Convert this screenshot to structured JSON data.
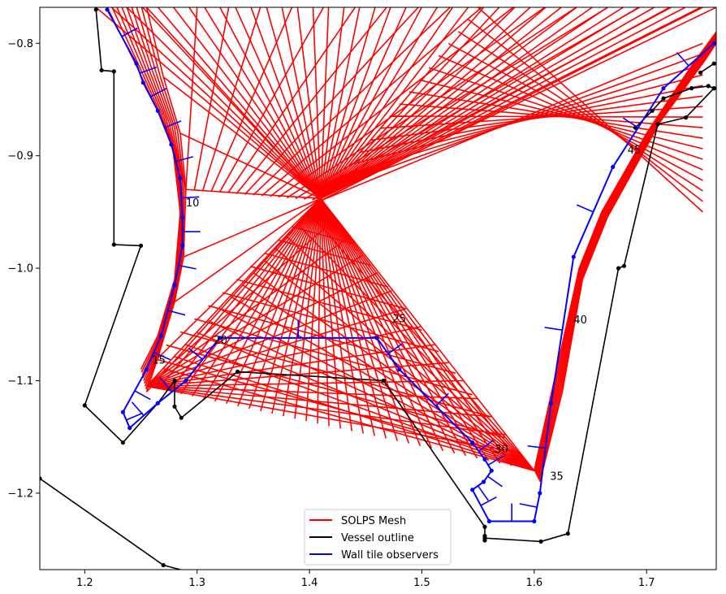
{
  "chart_data": {
    "type": "line",
    "title": "",
    "xlabel": "",
    "ylabel": "",
    "xlim": [
      1.16,
      1.762
    ],
    "ylim": [
      -1.268,
      -0.768
    ],
    "x_ticks": [
      1.2,
      1.3,
      1.4,
      1.5,
      1.6,
      1.7
    ],
    "x_tick_labels": [
      "1.2",
      "1.3",
      "1.4",
      "1.5",
      "1.6",
      "1.7"
    ],
    "y_ticks": [
      -0.8,
      -0.9,
      -1.0,
      -1.1,
      -1.2
    ],
    "y_tick_labels": [
      "−0.8",
      "−0.9",
      "−1.0",
      "−1.1",
      "−1.2"
    ],
    "grid": false,
    "legend_position": "lower-center",
    "colors": {
      "mesh": "#ff0000",
      "vessel": "#000000",
      "wall": "#0000ff"
    },
    "series": [
      {
        "name": "SOLPS Mesh",
        "color": "#ff0000",
        "x": [
          1.265,
          1.29,
          1.29,
          1.49,
          1.6,
          1.67,
          1.75,
          1.76
        ],
        "y": [
          -0.77,
          -0.92,
          -1.0,
          -1.03,
          -1.18,
          -0.95,
          -0.8,
          -0.77
        ]
      },
      {
        "name": "Vessel outline",
        "color": "#000000",
        "segments": [
          {
            "x": [
              1.21,
              1.215,
              1.226,
              1.226,
              1.25,
              1.2,
              1.234,
              1.265,
              1.28,
              1.28,
              1.286,
              1.336,
              1.466,
              1.556,
              1.556,
              1.556,
              1.556,
              1.606,
              1.63,
              1.675,
              1.68,
              1.71,
              1.735,
              1.76
            ],
            "y": [
              -0.77,
              -0.824,
              -0.825,
              -0.979,
              -0.98,
              -1.122,
              -1.155,
              -1.12,
              -1.1,
              -1.123,
              -1.133,
              -1.092,
              -1.1,
              -1.23,
              -1.238,
              -1.242,
              -1.24,
              -1.243,
              -1.236,
              -1.0,
              -0.998,
              -0.872,
              -0.866,
              -0.84
            ]
          },
          {
            "x": [
              1.16,
              1.27,
              1.3
            ],
            "y": [
              -1.187,
              -1.264,
              -1.272
            ]
          },
          {
            "x": [
              1.76,
              1.755,
              1.74,
              1.715,
              1.705,
              1.69
            ],
            "y": [
              -0.84,
              -0.838,
              -0.84,
              -0.849,
              -0.86,
              -0.875
            ]
          },
          {
            "x": [
              1.748,
              1.76
            ],
            "y": [
              -0.826,
              -0.818
            ]
          }
        ]
      },
      {
        "name": "Wall tile observers",
        "color": "#0000ff",
        "x": [
          1.22,
          1.246,
          1.252,
          1.265,
          1.277,
          1.285,
          1.287,
          1.287,
          1.28,
          1.268,
          1.255,
          1.234,
          1.24,
          1.265,
          1.29,
          1.32,
          1.46,
          1.48,
          1.545,
          1.556,
          1.562,
          1.555,
          1.545,
          1.56,
          1.6,
          1.605,
          1.615,
          1.635,
          1.67,
          1.715,
          1.76
        ],
        "y": [
          -0.77,
          -0.818,
          -0.835,
          -0.86,
          -0.89,
          -0.92,
          -0.955,
          -0.98,
          -1.015,
          -1.06,
          -1.09,
          -1.128,
          -1.142,
          -1.12,
          -1.1,
          -1.062,
          -1.062,
          -1.09,
          -1.155,
          -1.17,
          -1.18,
          -1.19,
          -1.197,
          -1.225,
          -1.225,
          -1.2,
          -1.12,
          -0.99,
          -0.91,
          -0.84,
          -0.8
        ]
      }
    ],
    "annotations": [
      {
        "text": "10",
        "x": 1.29,
        "y": -0.945
      },
      {
        "text": "15",
        "x": 1.26,
        "y": -1.085
      },
      {
        "text": "20",
        "x": 1.315,
        "y": -1.067
      },
      {
        "text": "25",
        "x": 1.474,
        "y": -1.048
      },
      {
        "text": "30",
        "x": 1.565,
        "y": -1.164
      },
      {
        "text": "35",
        "x": 1.614,
        "y": -1.188
      },
      {
        "text": "40",
        "x": 1.635,
        "y": -1.049
      },
      {
        "text": "45",
        "x": 1.683,
        "y": -0.898
      }
    ],
    "legend": [
      {
        "label": "SOLPS Mesh",
        "color": "#ff0000"
      },
      {
        "label": "Vessel outline",
        "color": "#000000"
      },
      {
        "label": "Wall tile observers",
        "color": "#0000ff"
      }
    ]
  }
}
